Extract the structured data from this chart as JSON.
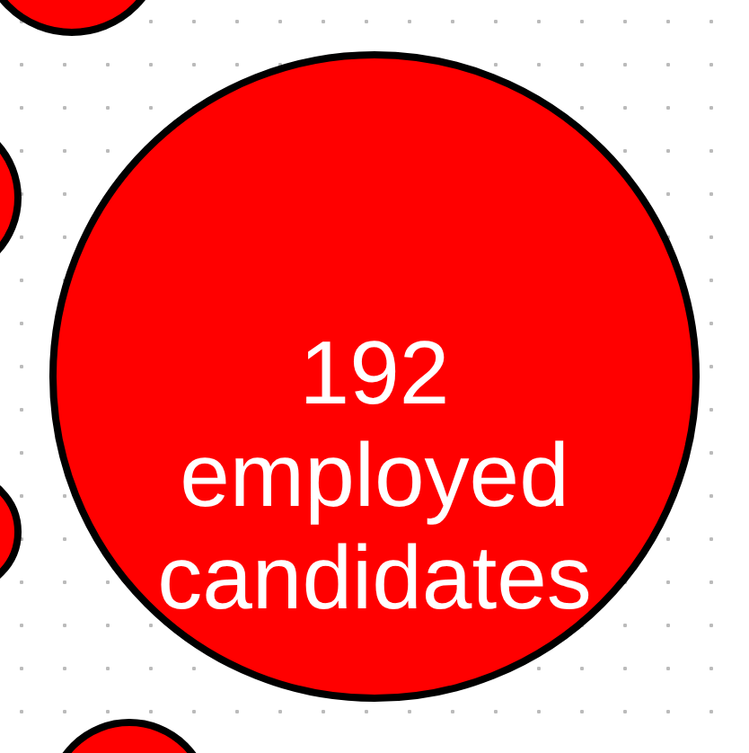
{
  "chart_data": {
    "type": "other",
    "categories": [
      "employed candidates"
    ],
    "values": [
      192
    ],
    "colors": [
      "#ff0000"
    ],
    "data_labels": true
  }
}
